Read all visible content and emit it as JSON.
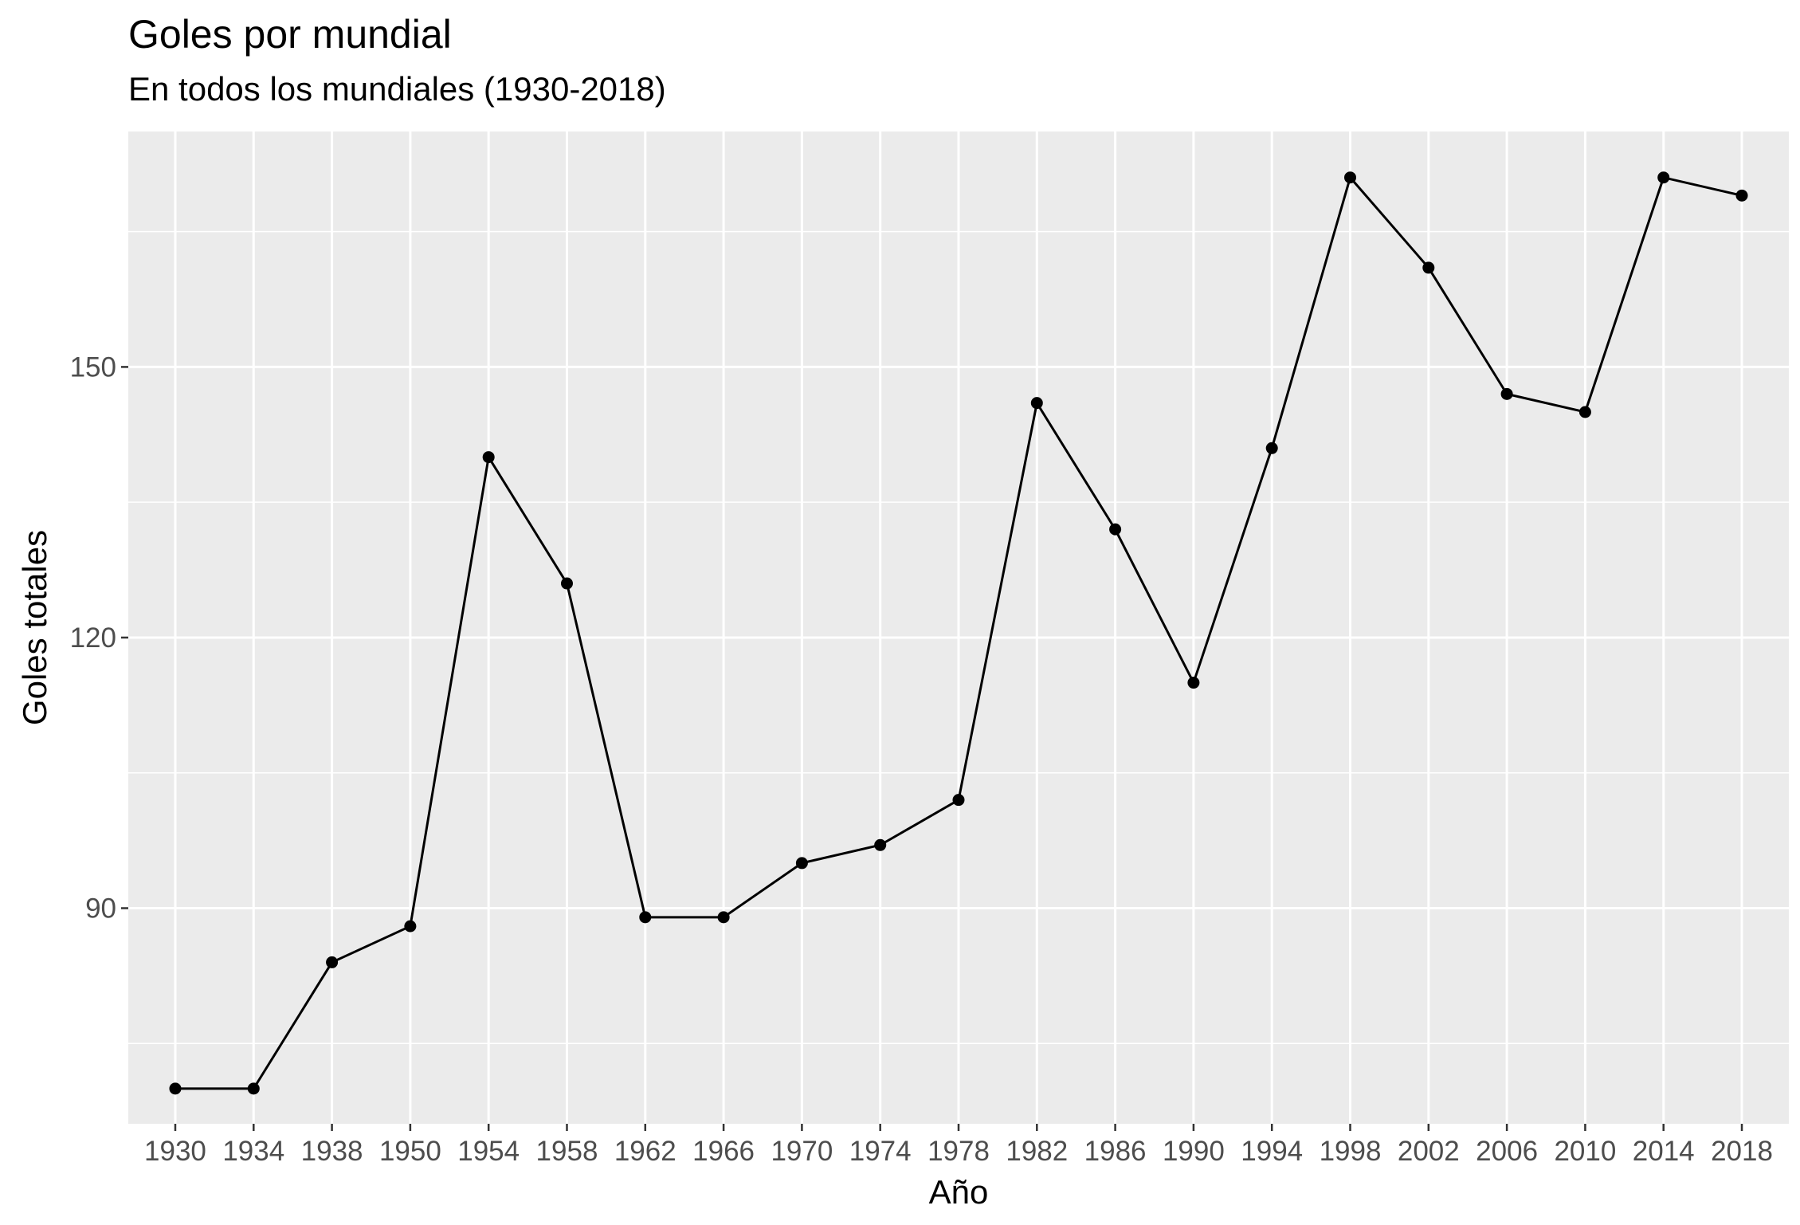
{
  "chart_data": {
    "type": "line",
    "title": "Goles por mundial",
    "subtitle": "En todos los mundiales (1930-2018)",
    "xlabel": "Año",
    "ylabel": "Goles totales",
    "categories": [
      "1930",
      "1934",
      "1938",
      "1950",
      "1954",
      "1958",
      "1962",
      "1966",
      "1970",
      "1974",
      "1978",
      "1982",
      "1986",
      "1990",
      "1994",
      "1998",
      "2002",
      "2006",
      "2010",
      "2014",
      "2018"
    ],
    "series": [
      {
        "values": [
          70,
          70,
          84,
          88,
          140,
          126,
          89,
          89,
          95,
          97,
          102,
          146,
          132,
          115,
          141,
          171,
          161,
          147,
          145,
          171,
          169
        ]
      }
    ],
    "yticks": [
      90,
      120,
      150
    ],
    "ylim": [
      66.1,
      176.1
    ],
    "grid": true,
    "colors": {
      "panel": "#ebebeb",
      "grid": "#ffffff",
      "line": "#000000",
      "tick_text": "#4d4d4d"
    }
  }
}
